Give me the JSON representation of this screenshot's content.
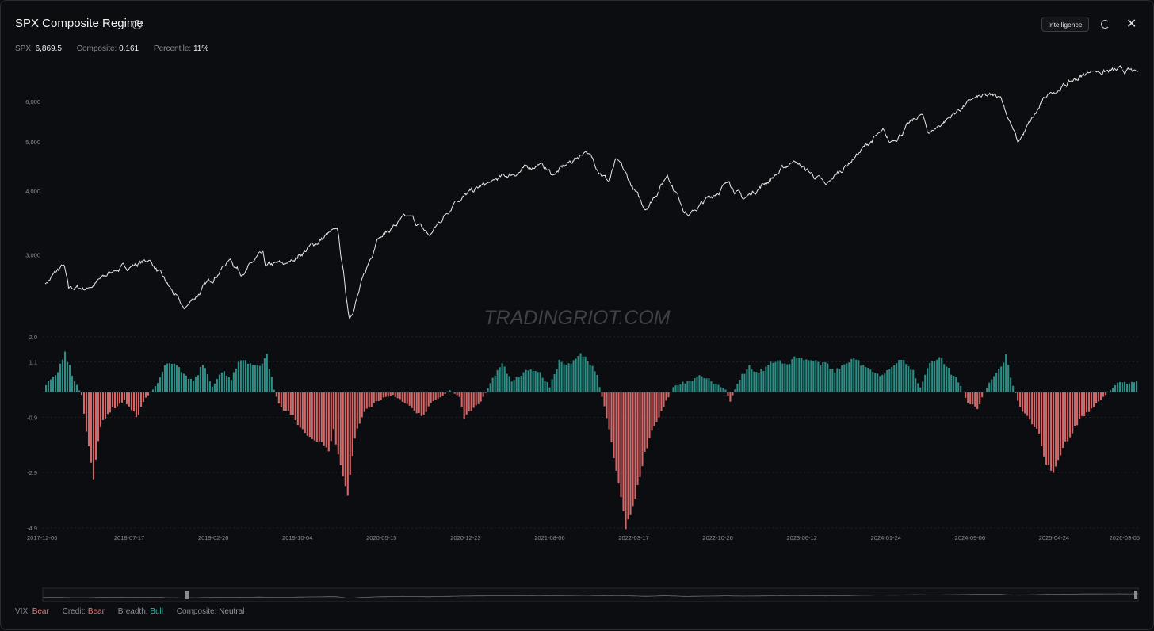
{
  "header": {
    "title": "SPX Composite Regime",
    "info_icon": "info-icon",
    "intelligence_label": "Intelligence",
    "refresh_icon": "refresh-icon",
    "close_icon": "close-icon"
  },
  "stats": [
    {
      "label": "SPX:",
      "value": "6,869.5"
    },
    {
      "label": "Composite:",
      "value": "0.161"
    },
    {
      "label": "Percentile:",
      "value": "11%"
    }
  ],
  "watermark": "TRADINGRIOT.COM",
  "footer": [
    {
      "label": "VIX:",
      "value": "Bear",
      "state": "bear"
    },
    {
      "label": "Credit:",
      "value": "Bear",
      "state": "bear"
    },
    {
      "label": "Breadth:",
      "value": "Bull",
      "state": "bull"
    },
    {
      "label": "Composite:",
      "value": "Neutral",
      "state": "neutral"
    }
  ],
  "colors": {
    "price_line": "#e8e8e8",
    "bull": "#2a8f86",
    "bear": "#d46868",
    "grid": "#2a2c31"
  },
  "chart_data": [
    {
      "type": "line",
      "series_label": "SPX",
      "y_ticks": [
        3000,
        4000,
        5000,
        6000
      ],
      "y_tick_labels": [
        "3,000",
        "4,000",
        "5,000",
        "6,000"
      ],
      "ylim": [
        2100,
        7100
      ],
      "x_start": "2017-12-06",
      "x_end": "2026-03-05",
      "points": [
        [
          "2017-12-06",
          2630
        ],
        [
          "2018-01-26",
          2870
        ],
        [
          "2018-02-08",
          2580
        ],
        [
          "2018-04-02",
          2580
        ],
        [
          "2018-06-12",
          2790
        ],
        [
          "2018-09-20",
          2930
        ],
        [
          "2018-12-24",
          2350
        ],
        [
          "2019-04-30",
          2945
        ],
        [
          "2019-06-03",
          2745
        ],
        [
          "2019-07-26",
          3025
        ],
        [
          "2019-08-05",
          2845
        ],
        [
          "2019-10-03",
          2885
        ],
        [
          "2020-02-19",
          3385
        ],
        [
          "2020-03-23",
          2240
        ],
        [
          "2020-06-08",
          3230
        ],
        [
          "2020-09-02",
          3580
        ],
        [
          "2020-10-30",
          3270
        ],
        [
          "2021-01-08",
          3825
        ],
        [
          "2021-04-15",
          4170
        ],
        [
          "2021-09-02",
          4535
        ],
        [
          "2021-10-04",
          4300
        ],
        [
          "2022-01-03",
          4795
        ],
        [
          "2022-03-08",
          4170
        ],
        [
          "2022-03-29",
          4630
        ],
        [
          "2022-06-16",
          3670
        ],
        [
          "2022-08-16",
          4305
        ],
        [
          "2022-10-12",
          3580
        ],
        [
          "2023-02-02",
          4180
        ],
        [
          "2023-03-13",
          3855
        ],
        [
          "2023-07-31",
          4590
        ],
        [
          "2023-10-27",
          4120
        ],
        [
          "2024-03-28",
          5250
        ],
        [
          "2024-04-19",
          4970
        ],
        [
          "2024-07-16",
          5670
        ],
        [
          "2024-08-05",
          5190
        ],
        [
          "2024-12-06",
          6090
        ],
        [
          "2025-02-19",
          6145
        ],
        [
          "2025-04-08",
          4980
        ],
        [
          "2025-06-30",
          6205
        ],
        [
          "2025-10-28",
          6890
        ],
        [
          "2026-03-05",
          6869
        ]
      ]
    },
    {
      "type": "bar",
      "series_label": "Composite",
      "y_ticks": [
        2.0,
        1.1,
        -0.9,
        -2.9,
        -4.9
      ],
      "y_tick_labels": [
        "2.0",
        "1.1",
        "-0.9",
        "-2.9",
        "-4.9"
      ],
      "ylim": [
        -4.9,
        2.0
      ],
      "x_tick_labels": [
        "2017-12-06",
        "2018-07-17",
        "2019-02-26",
        "2019-10-04",
        "2020-05-15",
        "2020-12-23",
        "2021-08-06",
        "2022-03-17",
        "2022-10-26",
        "2023-06-12",
        "2024-01-24",
        "2024-09-06",
        "2025-04-24",
        "2026-03-05"
      ],
      "bar_count": 460,
      "anchors": [
        [
          0,
          0.3
        ],
        [
          4,
          0.6
        ],
        [
          8,
          1.4
        ],
        [
          12,
          0.4
        ],
        [
          15,
          -0.1
        ],
        [
          17,
          -1.5
        ],
        [
          20,
          -3.1
        ],
        [
          23,
          -1.2
        ],
        [
          28,
          -0.6
        ],
        [
          33,
          -0.3
        ],
        [
          38,
          -0.9
        ],
        [
          42,
          -0.2
        ],
        [
          46,
          0.2
        ],
        [
          50,
          0.9
        ],
        [
          54,
          1.1
        ],
        [
          58,
          0.6
        ],
        [
          62,
          0.4
        ],
        [
          66,
          1.0
        ],
        [
          70,
          0.2
        ],
        [
          74,
          0.8
        ],
        [
          78,
          0.5
        ],
        [
          82,
          1.2
        ],
        [
          86,
          1.0
        ],
        [
          90,
          0.9
        ],
        [
          93,
          1.3
        ],
        [
          96,
          0.1
        ],
        [
          99,
          -0.6
        ],
        [
          103,
          -0.8
        ],
        [
          107,
          -1.2
        ],
        [
          111,
          -1.6
        ],
        [
          115,
          -1.8
        ],
        [
          119,
          -2.1
        ],
        [
          121,
          -1.4
        ],
        [
          124,
          -2.6
        ],
        [
          127,
          -3.7
        ],
        [
          130,
          -1.6
        ],
        [
          134,
          -0.7
        ],
        [
          138,
          -0.4
        ],
        [
          142,
          -0.2
        ],
        [
          146,
          -0.1
        ],
        [
          150,
          -0.3
        ],
        [
          154,
          -0.6
        ],
        [
          158,
          -0.9
        ],
        [
          162,
          -0.4
        ],
        [
          166,
          -0.2
        ],
        [
          170,
          0.1
        ],
        [
          174,
          -0.2
        ],
        [
          176,
          -0.9
        ],
        [
          180,
          -0.6
        ],
        [
          184,
          -0.2
        ],
        [
          188,
          0.5
        ],
        [
          192,
          1.0
        ],
        [
          196,
          0.4
        ],
        [
          200,
          0.6
        ],
        [
          204,
          0.9
        ],
        [
          208,
          0.7
        ],
        [
          212,
          0.2
        ],
        [
          216,
          1.1
        ],
        [
          220,
          1.0
        ],
        [
          224,
          1.4
        ],
        [
          228,
          1.2
        ],
        [
          232,
          0.6
        ],
        [
          234,
          -0.2
        ],
        [
          236,
          -0.9
        ],
        [
          240,
          -2.8
        ],
        [
          244,
          -4.9
        ],
        [
          248,
          -3.8
        ],
        [
          252,
          -2.2
        ],
        [
          256,
          -1.2
        ],
        [
          260,
          -0.5
        ],
        [
          264,
          0.2
        ],
        [
          270,
          0.4
        ],
        [
          276,
          0.6
        ],
        [
          282,
          0.3
        ],
        [
          286,
          0.1
        ],
        [
          288,
          -0.3
        ],
        [
          292,
          0.5
        ],
        [
          296,
          0.9
        ],
        [
          300,
          0.7
        ],
        [
          304,
          1.0
        ],
        [
          308,
          1.2
        ],
        [
          312,
          1.0
        ],
        [
          316,
          1.3
        ],
        [
          320,
          1.2
        ],
        [
          324,
          1.1
        ],
        [
          328,
          1.0
        ],
        [
          332,
          0.8
        ],
        [
          336,
          1.0
        ],
        [
          340,
          1.3
        ],
        [
          344,
          0.9
        ],
        [
          348,
          0.8
        ],
        [
          352,
          0.6
        ],
        [
          356,
          1.0
        ],
        [
          360,
          1.2
        ],
        [
          364,
          0.9
        ],
        [
          368,
          0.2
        ],
        [
          372,
          1.1
        ],
        [
          376,
          1.3
        ],
        [
          380,
          0.8
        ],
        [
          384,
          0.4
        ],
        [
          388,
          -0.4
        ],
        [
          392,
          -0.6
        ],
        [
          396,
          0.2
        ],
        [
          400,
          0.7
        ],
        [
          404,
          1.3
        ],
        [
          406,
          0.5
        ],
        [
          410,
          -0.6
        ],
        [
          414,
          -1.0
        ],
        [
          418,
          -1.5
        ],
        [
          420,
          -2.4
        ],
        [
          424,
          -2.9
        ],
        [
          428,
          -2.0
        ],
        [
          432,
          -1.4
        ],
        [
          436,
          -0.9
        ],
        [
          440,
          -0.6
        ],
        [
          444,
          -0.3
        ],
        [
          448,
          0.1
        ],
        [
          452,
          0.4
        ],
        [
          456,
          0.3
        ],
        [
          459,
          0.4
        ]
      ]
    }
  ]
}
